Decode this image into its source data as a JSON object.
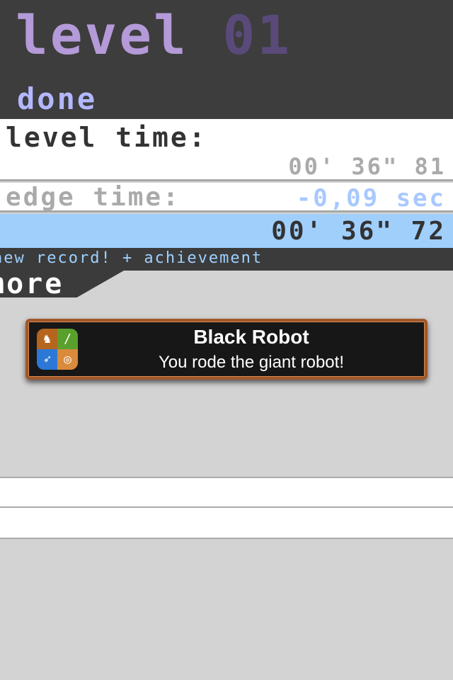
{
  "header": {
    "level_label": "level",
    "level_number": "01",
    "done_label": "done"
  },
  "notification": {
    "app_icon": "game-center-icon",
    "title": "Black Robot",
    "message": "You rode the giant robot!"
  },
  "results": {
    "level_time_label": "level time:",
    "level_time_value": "00' 36\" 81",
    "edge_time_label": "edge time:",
    "edge_time_value": "-0,09 sec",
    "best_time_value": "00' 36\" 72",
    "record_text": "new record! + achievement"
  },
  "tab": {
    "label": "more"
  },
  "colors": {
    "accent": "#b3b8ff",
    "highlight": "#a0cffc",
    "dark": "#3b3b3b"
  }
}
